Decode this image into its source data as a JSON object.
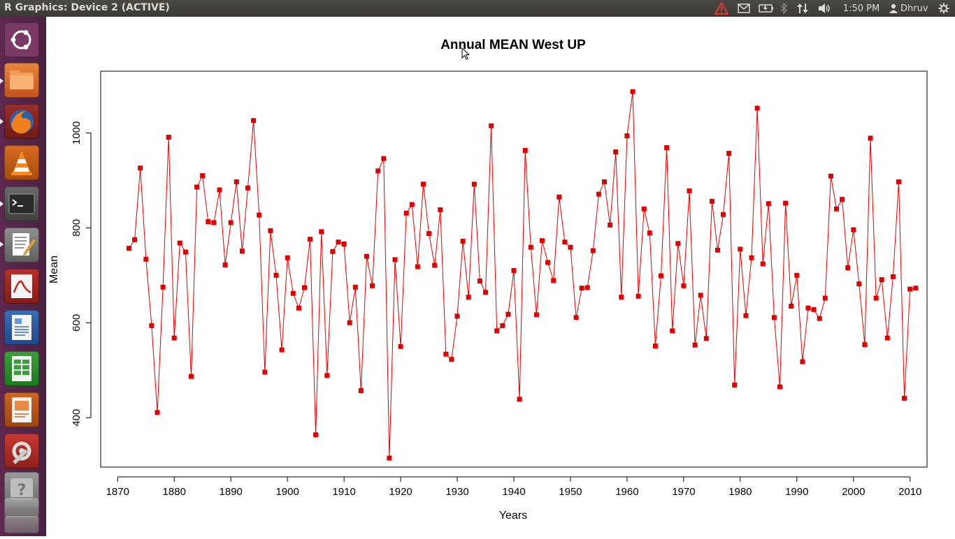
{
  "window": {
    "title": "R Graphics: Device 2 (ACTIVE)"
  },
  "topbar": {
    "time": "1:50 PM",
    "user": "Dhruv",
    "icons": [
      "warning-icon",
      "mail-icon",
      "battery-icon",
      "bluetooth-icon",
      "network-icon",
      "volume-icon",
      "user-icon",
      "gear-icon"
    ]
  },
  "launcher": {
    "items": [
      "ubuntu-dash-icon",
      "files-icon",
      "firefox-icon",
      "vlc-icon",
      "terminal-icon",
      "text-editor-icon",
      "pdf-viewer-icon",
      "writer-icon",
      "calc-icon",
      "impress-icon",
      "system-settings-icon",
      "unknown-app-icon"
    ]
  },
  "colors": {
    "series": "#e00000",
    "launcher_bg": "#5e2750",
    "topbar_bg": "#3c3b37"
  },
  "chart_data": {
    "type": "line",
    "title": "Annual MEAN West UP",
    "xlabel": "Years",
    "ylabel": "Mean",
    "xlim": [
      1867,
      2013
    ],
    "ylim": [
      296,
      1130
    ],
    "xticks": [
      1870,
      1880,
      1890,
      1900,
      1910,
      1920,
      1930,
      1940,
      1950,
      1960,
      1970,
      1980,
      1990,
      2000,
      2010
    ],
    "yticks": [
      400,
      600,
      800,
      1000
    ],
    "grid": false,
    "legend": "none",
    "marker": "square",
    "series": [
      {
        "x": [
          1872,
          1873,
          1874,
          1875,
          1876,
          1877,
          1878,
          1879,
          1880,
          1881,
          1882,
          1883,
          1884,
          1885,
          1886,
          1887,
          1888,
          1889,
          1890,
          1891,
          1892,
          1893,
          1894,
          1895,
          1896,
          1897,
          1898,
          1899,
          1900,
          1901,
          1902,
          1903,
          1904,
          1905,
          1906,
          1907,
          1908,
          1909,
          1910,
          1911,
          1912,
          1913,
          1914,
          1915,
          1916,
          1917,
          1918,
          1919,
          1920,
          1921,
          1922,
          1923,
          1924,
          1925,
          1926,
          1927,
          1928,
          1929,
          1930,
          1931,
          1932,
          1933,
          1934,
          1935,
          1936,
          1937,
          1938,
          1939,
          1940,
          1941,
          1942,
          1943,
          1944,
          1945,
          1946,
          1947,
          1948,
          1949,
          1950,
          1951,
          1952,
          1953,
          1954,
          1955,
          1956,
          1957,
          1958,
          1959,
          1960,
          1961,
          1962,
          1963,
          1964,
          1965,
          1966,
          1967,
          1968,
          1969,
          1970,
          1971,
          1972,
          1973,
          1974,
          1975,
          1976,
          1977,
          1978,
          1979,
          1980,
          1981,
          1982,
          1983,
          1984,
          1985,
          1986,
          1987,
          1988,
          1989,
          1990,
          1991,
          1992,
          1993,
          1994,
          1995,
          1996,
          1997,
          1998,
          1999,
          2000,
          2001,
          2002,
          2003,
          2004,
          2005,
          2006,
          2007,
          2008,
          2009,
          2010,
          2011
        ],
        "values": [
          757,
          775,
          926,
          734,
          594,
          411,
          675,
          991,
          568,
          768,
          749,
          487,
          886,
          910,
          813,
          811,
          880,
          722,
          811,
          897,
          751,
          884,
          1026,
          827,
          496,
          794,
          700,
          543,
          737,
          662,
          631,
          674,
          776,
          364,
          792,
          489,
          750,
          770,
          766,
          600,
          675,
          457,
          740,
          678,
          920,
          946,
          315,
          733,
          550,
          831,
          849,
          718,
          892,
          788,
          721,
          838,
          534,
          523,
          614,
          772,
          654,
          892,
          688,
          664,
          1015,
          583,
          594,
          618,
          710,
          439,
          963,
          759,
          617,
          773,
          727,
          689,
          865,
          770,
          759,
          611,
          673,
          674,
          752,
          871,
          897,
          806,
          960,
          654,
          994,
          1087,
          656,
          840,
          789,
          551,
          699,
          969,
          583,
          767,
          678,
          878,
          553,
          658,
          567,
          856,
          753,
          828,
          957,
          469,
          755,
          615,
          737,
          1052,
          724,
          851,
          611,
          465,
          852,
          635,
          700,
          518,
          631,
          628,
          609,
          652,
          909,
          840,
          860,
          716,
          796,
          682,
          554,
          989,
          652,
          691,
          568,
          697,
          897,
          441,
          671,
          673
        ]
      }
    ]
  }
}
